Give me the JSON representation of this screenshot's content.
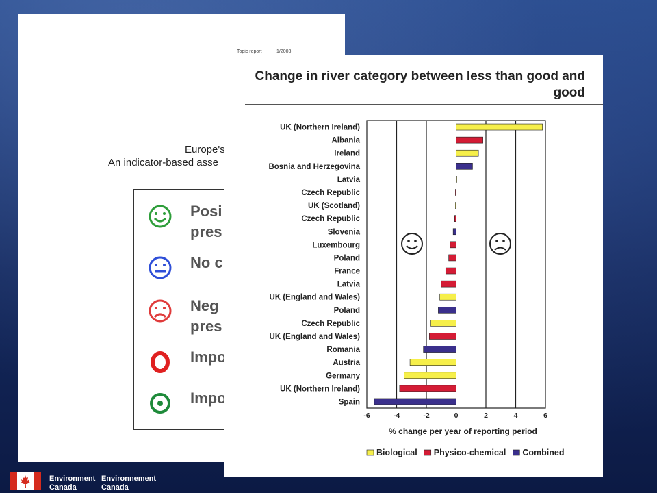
{
  "back_document": {
    "topic_label": "Topic report",
    "topic_date": "1/2003",
    "heading_line1": "Europe's",
    "heading_line2": "An indicator-based asse",
    "legend": [
      {
        "icon": "smiley-happy-icon",
        "color": "#2e9e3a",
        "text": "Posi\npres"
      },
      {
        "icon": "smiley-neutral-icon",
        "color": "#2f4fd8",
        "text": "No c"
      },
      {
        "icon": "smiley-sad-icon",
        "color": "#e03b3b",
        "text": "Neg\npres"
      },
      {
        "icon": "ring-red-icon",
        "color": "#e02020",
        "text": "Impo"
      },
      {
        "icon": "target-green-icon",
        "color": "#1e8a3a",
        "text": "Impo"
      }
    ]
  },
  "chart_data": {
    "type": "bar",
    "orientation": "horizontal",
    "title": "Change in river category between less than good and good",
    "xlabel": "% change per year of reporting period",
    "xlim": [
      -6,
      6
    ],
    "xticks": [
      "-6",
      "-4",
      "-2",
      "0",
      "2",
      "4",
      "6"
    ],
    "colors": {
      "Biological": "#f6ef4a",
      "Physico-chemical": "#d41c35",
      "Combined": "#3a2f8c"
    },
    "legend": [
      "Biological",
      "Physico-chemical",
      "Combined"
    ],
    "legend_position": "bottom",
    "bars": [
      {
        "label": "UK (Northern Ireland)",
        "value": 5.8,
        "series": "Biological"
      },
      {
        "label": "Albania",
        "value": 1.8,
        "series": "Physico-chemical"
      },
      {
        "label": "Ireland",
        "value": 1.5,
        "series": "Biological"
      },
      {
        "label": "Bosnia and Herzegovina",
        "value": 1.1,
        "series": "Combined"
      },
      {
        "label": "Latvia",
        "value": 0.0,
        "series": "Biological"
      },
      {
        "label": "Czech Republic",
        "value": -0.05,
        "series": "Physico-chemical"
      },
      {
        "label": "UK (Scotland)",
        "value": -0.05,
        "series": "Biological"
      },
      {
        "label": "Czech Republic",
        "value": -0.1,
        "series": "Physico-chemical"
      },
      {
        "label": "Slovenia",
        "value": -0.2,
        "series": "Combined"
      },
      {
        "label": "Luxembourg",
        "value": -0.4,
        "series": "Physico-chemical"
      },
      {
        "label": "Poland",
        "value": -0.5,
        "series": "Physico-chemical"
      },
      {
        "label": "France",
        "value": -0.7,
        "series": "Physico-chemical"
      },
      {
        "label": "Latvia",
        "value": -1.0,
        "series": "Physico-chemical"
      },
      {
        "label": "UK (England and Wales)",
        "value": -1.1,
        "series": "Biological"
      },
      {
        "label": "Poland",
        "value": -1.2,
        "series": "Combined"
      },
      {
        "label": "Czech Republic",
        "value": -1.7,
        "series": "Biological"
      },
      {
        "label": "UK (England and Wales)",
        "value": -1.8,
        "series": "Physico-chemical"
      },
      {
        "label": "Romania",
        "value": -2.2,
        "series": "Combined"
      },
      {
        "label": "Austria",
        "value": -3.1,
        "series": "Biological"
      },
      {
        "label": "Germany",
        "value": -3.5,
        "series": "Biological"
      },
      {
        "label": "UK (Northern Ireland)",
        "value": -3.8,
        "series": "Physico-chemical"
      },
      {
        "label": "Spain",
        "value": -5.5,
        "series": "Combined"
      }
    ]
  },
  "footer": {
    "logo": "canada-flag-icon",
    "org_en_line1": "Environment",
    "org_en_line2": "Canada",
    "org_fr_line1": "Environnement",
    "org_fr_line2": "Canada"
  }
}
